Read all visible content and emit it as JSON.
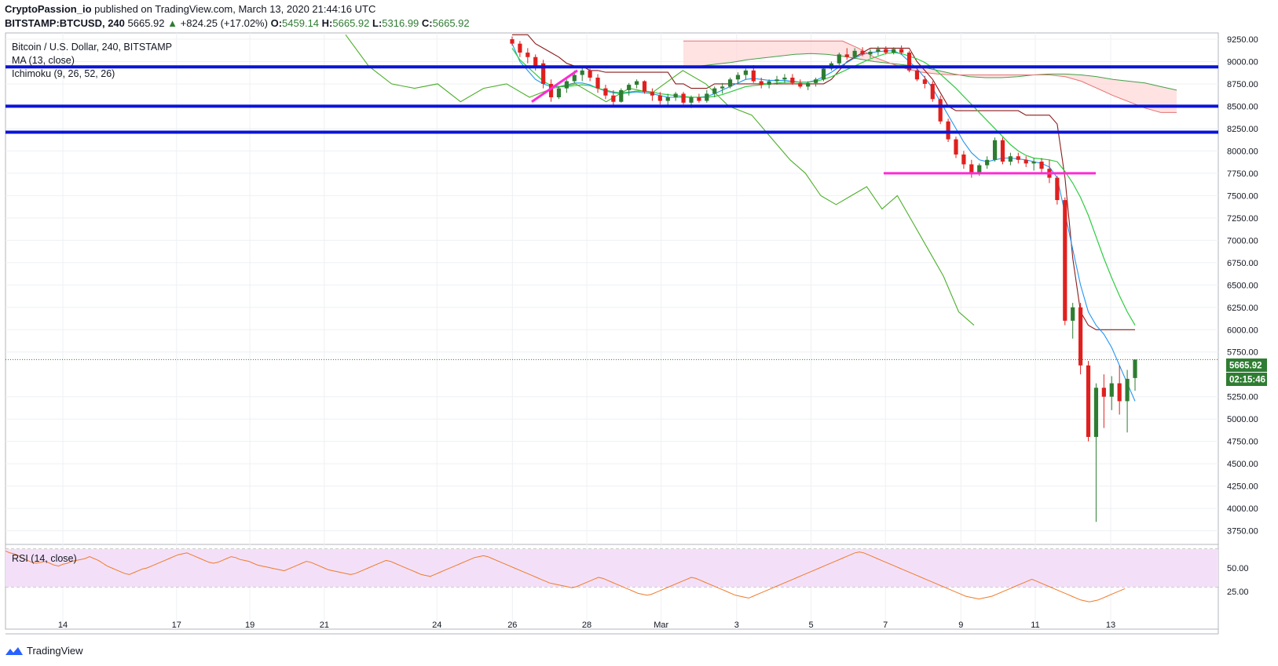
{
  "header": {
    "author": "CryptoPassion_io",
    "published_text": "published on TradingView.com, March 13, 2020 21:44:16 UTC",
    "symbol": "BITSTAMP:BTCUSD, 240",
    "last": "5665.92",
    "change": "+824.25 (+17.02%)",
    "o_label": "O:",
    "o": "5459.14",
    "h_label": "H:",
    "h": "5665.92",
    "l_label": "L:",
    "l": "5316.99",
    "c_label": "C:",
    "c": "5665.92"
  },
  "legend": {
    "title": "Bitcoin / U.S. Dollar, 240, BITSTAMP",
    "ma": "MA (13, close)",
    "ichimoku": "Ichimoku (9, 26, 52, 26)",
    "rsi": "RSI (14, close)"
  },
  "price_tags": {
    "price": "5665.92",
    "countdown": "02:15:46"
  },
  "footer": {
    "brand": "TradingView"
  },
  "colors": {
    "up": "#2e7d32",
    "down": "#e0201e",
    "ma": "#2196f3",
    "tenkan": "#2196f3",
    "kijun": "#8b1a1a",
    "chikou": "#4caf2a",
    "senkou": "#2ecc40",
    "cloud": "#ffd6d6",
    "hline": "#0a14d6",
    "magenta": "#ff2ad4",
    "rsi": "#f07a2a",
    "rsibg": "#f3e0f8"
  },
  "chart_data": {
    "type": "candlestick",
    "title": "Bitcoin / U.S. Dollar, 240, BITSTAMP",
    "x_ticks": [
      "14",
      "17",
      "19",
      "21",
      "24",
      "26",
      "28",
      "Mar",
      "3",
      "5",
      "7",
      "9",
      "11",
      "13"
    ],
    "y_ticks": [
      "9250.00",
      "9000.00",
      "8750.00",
      "8500.00",
      "8250.00",
      "8000.00",
      "7750.00",
      "7500.00",
      "7250.00",
      "7000.00",
      "6750.00",
      "6500.00",
      "6250.00",
      "6000.00",
      "5750.00",
      "5250.00",
      "5000.00",
      "4750.00",
      "4500.00",
      "4250.00",
      "4000.00",
      "3750.00"
    ],
    "ylim": [
      3650,
      9320
    ],
    "horizontal_levels": [
      8940,
      8500,
      8210
    ],
    "support_level": 7750,
    "last_price": 5665.92,
    "candles": [
      [
        9250,
        9280,
        9180,
        9200
      ],
      [
        9200,
        9230,
        9050,
        9100
      ],
      [
        9100,
        9150,
        8980,
        9050
      ],
      [
        9050,
        9080,
        8900,
        8950
      ],
      [
        8980,
        9020,
        8700,
        8750
      ],
      [
        8750,
        8800,
        8550,
        8600
      ],
      [
        8600,
        8720,
        8580,
        8700
      ],
      [
        8700,
        8800,
        8650,
        8780
      ],
      [
        8780,
        8900,
        8760,
        8850
      ],
      [
        8850,
        8930,
        8780,
        8900
      ],
      [
        8900,
        8920,
        8780,
        8820
      ],
      [
        8820,
        8860,
        8650,
        8700
      ],
      [
        8700,
        8740,
        8580,
        8620
      ],
      [
        8620,
        8680,
        8500,
        8550
      ],
      [
        8550,
        8700,
        8540,
        8680
      ],
      [
        8680,
        8760,
        8620,
        8740
      ],
      [
        8740,
        8800,
        8700,
        8780
      ],
      [
        8780,
        8790,
        8640,
        8660
      ],
      [
        8660,
        8700,
        8560,
        8620
      ],
      [
        8620,
        8660,
        8520,
        8560
      ],
      [
        8560,
        8640,
        8500,
        8600
      ],
      [
        8600,
        8660,
        8560,
        8640
      ],
      [
        8640,
        8660,
        8520,
        8540
      ],
      [
        8540,
        8620,
        8480,
        8600
      ],
      [
        8600,
        8640,
        8540,
        8560
      ],
      [
        8560,
        8680,
        8540,
        8640
      ],
      [
        8640,
        8720,
        8600,
        8700
      ],
      [
        8700,
        8760,
        8640,
        8720
      ],
      [
        8720,
        8820,
        8700,
        8800
      ],
      [
        8800,
        8880,
        8760,
        8850
      ],
      [
        8850,
        8920,
        8800,
        8900
      ],
      [
        8900,
        8960,
        8760,
        8780
      ],
      [
        8780,
        8820,
        8700,
        8740
      ],
      [
        8740,
        8800,
        8700,
        8780
      ],
      [
        8780,
        8840,
        8740,
        8800
      ],
      [
        8800,
        8860,
        8760,
        8820
      ],
      [
        8820,
        8860,
        8740,
        8760
      ],
      [
        8760,
        8800,
        8700,
        8720
      ],
      [
        8720,
        8780,
        8680,
        8760
      ],
      [
        8760,
        8820,
        8720,
        8800
      ],
      [
        8800,
        8950,
        8780,
        8920
      ],
      [
        8920,
        9000,
        8900,
        8980
      ],
      [
        8980,
        9100,
        8960,
        9080
      ],
      [
        9080,
        9150,
        9020,
        9050
      ],
      [
        9050,
        9150,
        9030,
        9120
      ],
      [
        9120,
        9160,
        9060,
        9080
      ],
      [
        9080,
        9140,
        9040,
        9110
      ],
      [
        9110,
        9170,
        9070,
        9140
      ],
      [
        9140,
        9170,
        9080,
        9100
      ],
      [
        9100,
        9160,
        9080,
        9140
      ],
      [
        9140,
        9180,
        9080,
        9100
      ],
      [
        9100,
        9120,
        8880,
        8900
      ],
      [
        8900,
        8920,
        8780,
        8800
      ],
      [
        8800,
        8840,
        8700,
        8750
      ],
      [
        8750,
        8780,
        8550,
        8580
      ],
      [
        8580,
        8620,
        8300,
        8330
      ],
      [
        8330,
        8360,
        8100,
        8130
      ],
      [
        8130,
        8160,
        7920,
        7960
      ],
      [
        7960,
        8000,
        7800,
        7850
      ],
      [
        7850,
        7900,
        7700,
        7760
      ],
      [
        7760,
        7860,
        7720,
        7840
      ],
      [
        7840,
        7940,
        7800,
        7900
      ],
      [
        7900,
        8150,
        7880,
        8120
      ],
      [
        8120,
        8150,
        7850,
        7880
      ],
      [
        7880,
        7980,
        7840,
        7940
      ],
      [
        7940,
        7980,
        7860,
        7900
      ],
      [
        7900,
        7940,
        7820,
        7860
      ],
      [
        7860,
        7920,
        7780,
        7880
      ],
      [
        7880,
        7920,
        7760,
        7800
      ],
      [
        7800,
        7900,
        7640,
        7700
      ],
      [
        7700,
        7720,
        7400,
        7450
      ],
      [
        7450,
        7480,
        6050,
        6100
      ],
      [
        6100,
        6300,
        5900,
        6250
      ],
      [
        6250,
        6300,
        5500,
        5600
      ],
      [
        5600,
        5650,
        4750,
        4800
      ],
      [
        4800,
        5400,
        3850,
        5350
      ],
      [
        5350,
        5500,
        4900,
        5250
      ],
      [
        5250,
        5480,
        5100,
        5400
      ],
      [
        5400,
        5600,
        5050,
        5200
      ],
      [
        5200,
        5550,
        4850,
        5450
      ],
      [
        5459.14,
        5665.92,
        5316.99,
        5665.92
      ]
    ],
    "ma13": [
      9150,
      9020,
      8940,
      8860,
      8780,
      8730,
      8720,
      8720,
      8730,
      8740,
      8730,
      8700,
      8680,
      8660,
      8650,
      8660,
      8670,
      8670,
      8660,
      8640,
      8630,
      8620,
      8610,
      8600,
      8600,
      8600,
      8610,
      8630,
      8660,
      8690,
      8720,
      8730,
      8740,
      8750,
      8760,
      8770,
      8770,
      8770,
      8770,
      8780,
      8800,
      8830,
      8870,
      8910,
      8950,
      8990,
      9030,
      9060,
      9090,
      9100,
      9090,
      9060,
      9030,
      8990,
      8930,
      8860,
      8780,
      8700,
      8610,
      8520,
      8430,
      8340,
      8250,
      8160,
      8070,
      8000,
      7950,
      7920,
      7910,
      7900,
      7880,
      7770,
      7640,
      7480,
      7280,
      7040,
      6800,
      6580,
      6380,
      6200,
      6050
    ],
    "tenkan": [
      9200,
      9000,
      8900,
      8800,
      8750,
      8720,
      8720,
      8740,
      8760,
      8760,
      8740,
      8700,
      8670,
      8650,
      8640,
      8650,
      8660,
      8650,
      8640,
      8620,
      8600,
      8600,
      8600,
      8600,
      8600,
      8610,
      8640,
      8680,
      8720,
      8760,
      8800,
      8810,
      8800,
      8790,
      8790,
      8790,
      8780,
      8770,
      8770,
      8790,
      8830,
      8880,
      8940,
      8990,
      9040,
      9080,
      9100,
      9110,
      9120,
      9120,
      9080,
      9000,
      8920,
      8820,
      8700,
      8550,
      8400,
      8250,
      8100,
      7980,
      7900,
      7880,
      7900,
      7920,
      7920,
      7910,
      7900,
      7880,
      7860,
      7820,
      7700,
      7300,
      6900,
      6500,
      6200,
      6050,
      5950,
      5800,
      5600,
      5400,
      5200
    ],
    "kijun": [
      9300,
      9300,
      9300,
      9200,
      9150,
      9100,
      9050,
      8980,
      8950,
      8950,
      8900,
      8900,
      8880,
      8880,
      8880,
      8880,
      8880,
      8880,
      8880,
      8880,
      8880,
      8750,
      8750,
      8700,
      8700,
      8700,
      8750,
      8750,
      8750,
      8750,
      8750,
      8750,
      8750,
      8750,
      8750,
      8750,
      8750,
      8750,
      8750,
      8750,
      8750,
      8800,
      8900,
      9000,
      9050,
      9100,
      9150,
      9150,
      9150,
      9150,
      9150,
      9150,
      9000,
      8900,
      8800,
      8650,
      8500,
      8450,
      8450,
      8450,
      8450,
      8450,
      8450,
      8450,
      8450,
      8450,
      8400,
      8400,
      8400,
      8400,
      8300,
      7700,
      6800,
      6200,
      6050,
      6000,
      6000,
      6000,
      6000,
      6000,
      6000
    ],
    "chikou_points": [
      [
        0.28,
        9300
      ],
      [
        0.31,
        8950
      ],
      [
        0.34,
        8750
      ],
      [
        0.37,
        8700
      ],
      [
        0.4,
        8750
      ],
      [
        0.43,
        8550
      ],
      [
        0.46,
        8700
      ],
      [
        0.49,
        8750
      ],
      [
        0.52,
        8600
      ],
      [
        0.55,
        8700
      ],
      [
        0.58,
        8750
      ],
      [
        0.62,
        8550
      ],
      [
        0.65,
        8700
      ],
      [
        0.68,
        8650
      ],
      [
        0.72,
        8900
      ],
      [
        0.75,
        8750
      ],
      [
        0.78,
        8500
      ],
      [
        0.81,
        8400
      ],
      [
        0.84,
        8100
      ],
      [
        0.86,
        7900
      ],
      [
        0.88,
        7750
      ],
      [
        0.9,
        7500
      ],
      [
        0.92,
        7400
      ],
      [
        0.94,
        7500
      ],
      [
        0.96,
        7600
      ],
      [
        0.98,
        7350
      ],
      [
        1.0,
        7500
      ],
      [
        1.02,
        7200
      ],
      [
        1.04,
        6900
      ],
      [
        1.06,
        6600
      ],
      [
        1.08,
        6200
      ],
      [
        1.1,
        6050
      ]
    ],
    "senkou_a": [
      8950,
      8950,
      8970,
      8990,
      9020,
      9040,
      9060,
      9080,
      9090,
      9080,
      9060,
      9030,
      9000,
      8980,
      8960,
      8940,
      8900,
      8860,
      8830,
      8820,
      8820,
      8830,
      8850,
      8860,
      8860,
      8850,
      8830,
      8800,
      8780,
      8760,
      8720,
      8680
    ],
    "senkou_b": [
      9230,
      9230,
      9230,
      9230,
      9230,
      9230,
      9230,
      9230,
      9230,
      9230,
      9230,
      9150,
      9050,
      8980,
      8920,
      8880,
      8860,
      8850,
      8850,
      8850,
      8850,
      8850,
      8850,
      8850,
      8830,
      8780,
      8700,
      8620,
      8550,
      8480,
      8430,
      8430
    ],
    "rsi_ylim": [
      10,
      75
    ],
    "rsi_ticks": [
      "50.00",
      "25.00"
    ],
    "rsi": [
      68,
      66,
      65,
      63,
      60,
      58,
      56,
      55,
      56,
      57,
      55,
      53,
      52,
      54,
      55,
      57,
      58,
      59,
      60,
      62,
      60,
      58,
      55,
      52,
      50,
      48,
      46,
      44,
      43,
      45,
      47,
      49,
      50,
      52,
      54,
      56,
      58,
      60,
      62,
      64,
      65,
      66,
      64,
      62,
      60,
      58,
      56,
      55,
      56,
      58,
      60,
      62,
      61,
      59,
      58,
      57,
      55,
      53,
      52,
      51,
      50,
      49,
      48,
      47,
      49,
      51,
      53,
      55,
      57,
      56,
      54,
      52,
      50,
      48,
      47,
      46,
      45,
      44,
      43,
      44,
      46,
      48,
      50,
      52,
      54,
      56,
      58,
      57,
      55,
      53,
      51,
      49,
      47,
      45,
      43,
      42,
      41,
      43,
      45,
      47,
      49,
      51,
      53,
      55,
      57,
      59,
      61,
      62,
      63,
      62,
      60,
      58,
      56,
      54,
      52,
      50,
      48,
      46,
      44,
      42,
      40,
      38,
      36,
      34,
      33,
      32,
      31,
      30,
      29,
      30,
      32,
      34,
      36,
      38,
      40,
      39,
      37,
      35,
      33,
      31,
      29,
      27,
      25,
      23,
      22,
      21,
      22,
      24,
      26,
      28,
      30,
      32,
      34,
      36,
      38,
      40,
      39,
      37,
      35,
      33,
      31,
      29,
      27,
      25,
      23,
      21,
      20,
      19,
      18,
      20,
      22,
      24,
      26,
      28,
      30,
      32,
      34,
      36,
      38,
      40,
      42,
      44,
      46,
      48,
      50,
      52,
      54,
      56,
      58,
      60,
      62,
      64,
      66,
      67,
      66,
      64,
      62,
      60,
      58,
      56,
      54,
      52,
      50,
      48,
      46,
      44,
      42,
      40,
      38,
      36,
      34,
      32,
      30,
      28,
      26,
      24,
      22,
      20,
      19,
      18,
      17,
      18,
      19,
      20,
      22,
      24,
      26,
      28,
      30,
      32,
      34,
      36,
      38,
      36,
      34,
      32,
      30,
      28,
      26,
      24,
      22,
      20,
      18,
      16,
      15,
      14,
      15,
      16,
      18,
      20,
      22,
      24,
      26,
      28
    ]
  }
}
